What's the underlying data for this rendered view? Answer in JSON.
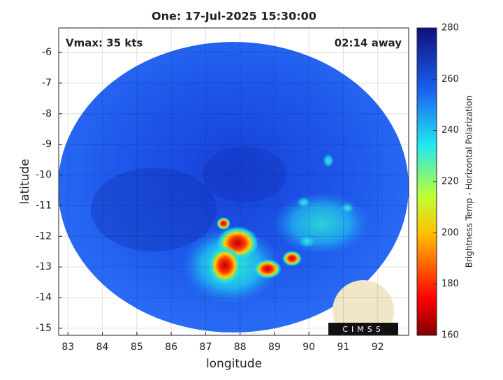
{
  "chart_data": {
    "type": "image",
    "title": "One: 17-Jul-2025 15:30:00",
    "annotations": [
      "Vmax: 35 kts",
      "02:14 away"
    ],
    "xlabel": "longitude",
    "ylabel": "latitude",
    "xlim": [
      82.73,
      92.9
    ],
    "xticks": [
      83,
      84,
      85,
      86,
      87,
      88,
      89,
      90,
      91,
      92
    ],
    "ylim": [
      -15.23,
      -5.2
    ],
    "yticks": [
      -6,
      -7,
      -8,
      -9,
      -10,
      -11,
      -12,
      -13,
      -14,
      -15
    ],
    "grid": true,
    "colorbar": {
      "label": "Brightness Temp - Horizontal Polarization",
      "lim": [
        160,
        280
      ],
      "ticks": [
        160,
        180,
        200,
        220,
        240,
        260,
        280
      ]
    },
    "logo_text": "CIMSS"
  }
}
